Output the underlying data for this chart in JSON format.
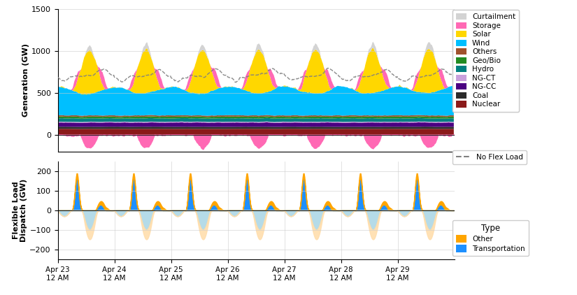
{
  "n_days": 7,
  "n_pts_per_day": 96,
  "x_tick_labels": [
    "Apr 23\n12 AM",
    "Apr 24\n12 AM",
    "Apr 25\n12 AM",
    "Apr 26\n12 AM",
    "Apr 27\n12 AM",
    "Apr 28\n12 AM",
    "Apr 29\n12 AM"
  ],
  "gen_ylim": [
    -200,
    1500
  ],
  "gen_yticks": [
    0,
    500,
    1000,
    1500
  ],
  "flex_ylim": [
    -250,
    250
  ],
  "flex_yticks": [
    -200,
    -100,
    0,
    100,
    200
  ],
  "gen_ylabel": "Generation (GW)",
  "flex_ylabel": "Flexible Load\nDispatch (GW)",
  "colors": {
    "Nuclear": "#8B1A1A",
    "Coal": "#2B2B2B",
    "NG-CC": "#4B0082",
    "NG-CT": "#C9A0DC",
    "Hydro": "#008080",
    "Geo/Bio": "#228B22",
    "Others": "#A0522D",
    "Wind": "#00BFFF",
    "Solar": "#FFD700",
    "Storage_pos": "#FF69B4",
    "Storage_neg": "#FF69B4",
    "Curtailment": "#D3D3D3",
    "Transport_pos": "#1E90FF",
    "Transport_neg": "#ADD8E6",
    "Other_pos": "#FFA500",
    "Other_neg": "#FFDEAD",
    "no_flex": "#808080"
  },
  "legend_gen": [
    {
      "label": "Curtailment",
      "color": "#D3D3D3"
    },
    {
      "label": "Storage",
      "color": "#FF69B4"
    },
    {
      "label": "Solar",
      "color": "#FFD700"
    },
    {
      "label": "Wind",
      "color": "#00BFFF"
    },
    {
      "label": "Others",
      "color": "#A0522D"
    },
    {
      "label": "Geo/Bio",
      "color": "#228B22"
    },
    {
      "label": "Hydro",
      "color": "#008080"
    },
    {
      "label": "NG-CT",
      "color": "#C9A0DC"
    },
    {
      "label": "NG-CC",
      "color": "#4B0082"
    },
    {
      "label": "Coal",
      "color": "#2B2B2B"
    },
    {
      "label": "Nuclear",
      "color": "#8B1A1A"
    }
  ],
  "background_color": "#FFFFFF",
  "grid_color": "#CCCCCC"
}
